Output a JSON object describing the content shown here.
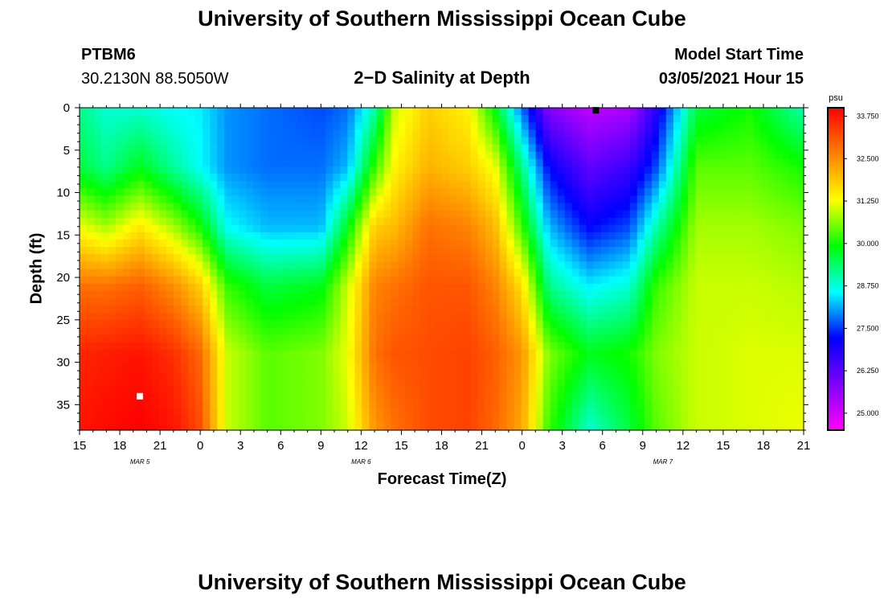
{
  "page": {
    "title_top": "University of Southern Mississippi Ocean Cube",
    "title_bottom": "University of Southern Mississippi Ocean Cube",
    "station": "PTBM6",
    "location": "30.2130N 88.5050W",
    "plot_title": "2−D Salinity at Depth",
    "model_start_label": "Model Start Time",
    "model_start_value": "03/05/2021 Hour 15"
  },
  "chart_data": {
    "type": "heatmap",
    "title": "2−D Salinity at Depth",
    "xlabel": "Forecast Time(Z)",
    "ylabel": "Depth (ft)",
    "x_hours": [
      0,
      54
    ],
    "x_tick_labels": [
      "15",
      "18",
      "21",
      "0",
      "3",
      "6",
      "9",
      "12",
      "15",
      "18",
      "21",
      "0",
      "3",
      "6",
      "9",
      "12",
      "15",
      "18",
      "21"
    ],
    "date_labels": [
      {
        "text": "MAR 5",
        "hour": 4.5
      },
      {
        "text": "MAR 6",
        "hour": 21
      },
      {
        "text": "MAR 7",
        "hour": 43.5
      }
    ],
    "ylim": [
      0,
      38
    ],
    "y_ticks": [
      0,
      5,
      10,
      15,
      20,
      25,
      30,
      35
    ],
    "colorbar": {
      "unit": "psu",
      "range": [
        24.5,
        34.0
      ],
      "tick_values": [
        33.75,
        32.5,
        31.25,
        30.0,
        28.75,
        27.5,
        26.25,
        25.0
      ],
      "tick_labels": [
        "33.750",
        "32.500",
        "31.250",
        "30.000",
        "28.750",
        "27.500",
        "26.250",
        "25.000"
      ],
      "colors": [
        "#ff00ff",
        "#8000ff",
        "#0000ff",
        "#00ffff",
        "#00ff00",
        "#ffff00",
        "#ff8000",
        "#ff0000"
      ]
    },
    "salinity_profiles": [
      {
        "hour": 0,
        "values": [
          29.2,
          29.6,
          31.2,
          32.8,
          33.6,
          33.8
        ]
      },
      {
        "hour": 2,
        "values": [
          28.8,
          29.2,
          30.8,
          32.8,
          33.7,
          33.9
        ]
      },
      {
        "hour": 4.5,
        "values": [
          28.8,
          29.8,
          31.5,
          33.0,
          33.8,
          34.0
        ]
      },
      {
        "hour": 7,
        "values": [
          28.6,
          29.1,
          30.8,
          32.5,
          33.5,
          33.8
        ]
      },
      {
        "hour": 9,
        "values": [
          28.5,
          28.6,
          30.0,
          31.8,
          32.9,
          33.2
        ]
      },
      {
        "hour": 11,
        "values": [
          28.0,
          28.0,
          28.6,
          30.2,
          31.0,
          31.0
        ]
      },
      {
        "hour": 14,
        "values": [
          27.8,
          27.8,
          28.2,
          29.6,
          30.4,
          30.4
        ]
      },
      {
        "hour": 18,
        "values": [
          27.6,
          27.8,
          28.2,
          29.8,
          30.6,
          30.6
        ]
      },
      {
        "hour": 20,
        "values": [
          27.8,
          28.2,
          29.8,
          31.0,
          31.2,
          31.0
        ]
      },
      {
        "hour": 22,
        "values": [
          29.0,
          30.2,
          31.8,
          32.6,
          32.8,
          32.4
        ]
      },
      {
        "hour": 23.5,
        "values": [
          31.0,
          31.4,
          32.0,
          32.8,
          33.1,
          32.8
        ]
      },
      {
        "hour": 26,
        "values": [
          31.8,
          32.1,
          32.8,
          33.1,
          33.2,
          33.2
        ]
      },
      {
        "hour": 29,
        "values": [
          31.4,
          31.8,
          32.6,
          33.1,
          33.3,
          33.3
        ]
      },
      {
        "hour": 31,
        "values": [
          29.8,
          31.2,
          32.0,
          32.6,
          33.0,
          32.9
        ]
      },
      {
        "hour": 33,
        "values": [
          27.8,
          29.2,
          30.2,
          31.6,
          32.4,
          32.2
        ]
      },
      {
        "hour": 35,
        "values": [
          25.8,
          27.2,
          28.2,
          29.2,
          30.6,
          30.2
        ]
      },
      {
        "hour": 38,
        "values": [
          25.2,
          26.2,
          27.2,
          28.5,
          29.8,
          28.8
        ]
      },
      {
        "hour": 41,
        "values": [
          25.4,
          26.6,
          27.6,
          28.8,
          30.0,
          29.6
        ]
      },
      {
        "hour": 43,
        "values": [
          26.8,
          27.6,
          29.0,
          30.2,
          30.6,
          30.4
        ]
      },
      {
        "hour": 46,
        "values": [
          29.6,
          30.4,
          30.8,
          31.0,
          31.0,
          31.0
        ]
      },
      {
        "hour": 50,
        "values": [
          30.0,
          30.4,
          30.8,
          31.0,
          31.1,
          31.1
        ]
      },
      {
        "hour": 54,
        "values": [
          29.0,
          30.0,
          30.6,
          30.9,
          31.1,
          31.2
        ]
      }
    ],
    "profile_depths": [
      0,
      7,
      14,
      21,
      29,
      38
    ],
    "markers": [
      {
        "hour": 38.5,
        "depth": 0.3,
        "color": "#000000"
      },
      {
        "hour": 4.5,
        "depth": 34,
        "color": "#ffffff"
      }
    ]
  }
}
